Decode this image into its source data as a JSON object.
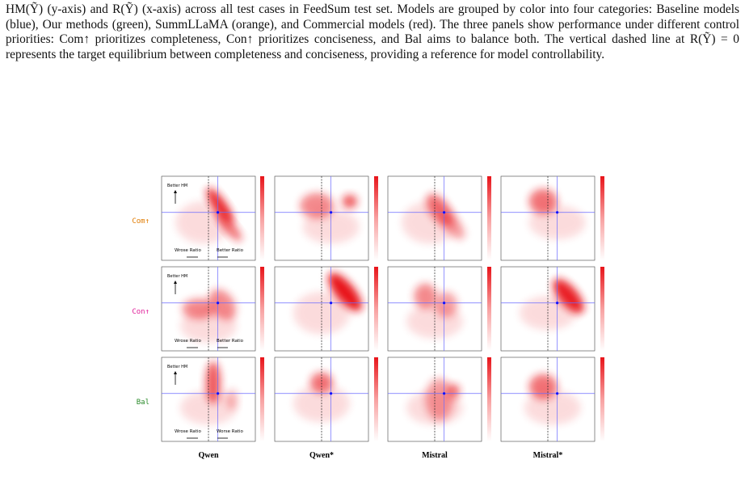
{
  "caption": "HM(Ỹ) (y-axis) and R(Ỹ) (x-axis) across all test cases in FeedSum test set. Models are grouped by color into four categories: Baseline models (blue), Our methods (green), SummLLaMA (orange), and Commercial models (red). The three panels show performance under different control priorities: Com↑ prioritizes completeness, Con↑ prioritizes conciseness, and Bal aims to balance both. The vertical dashed line at R(Ỹ) = 0 represents the target equilibrium between completeness and conciseness, providing a reference for model controllability.",
  "figure": {
    "row_labels": [
      "Com↑",
      "Con↑",
      "Bal"
    ],
    "column_labels": [
      "Qwen",
      "Qwen*",
      "Mistral",
      "Mistral*"
    ],
    "annotations": [
      {
        "y_label": "Better HM",
        "left": "Wrose Ratio",
        "right": "Better Ratio"
      },
      {
        "y_label": "Better HM",
        "left": "Wrose Ratio",
        "right": "Better Ratio"
      },
      {
        "y_label": "Better HM",
        "left": "Wrose Ratio",
        "right": "Worse Ratio"
      }
    ]
  }
}
